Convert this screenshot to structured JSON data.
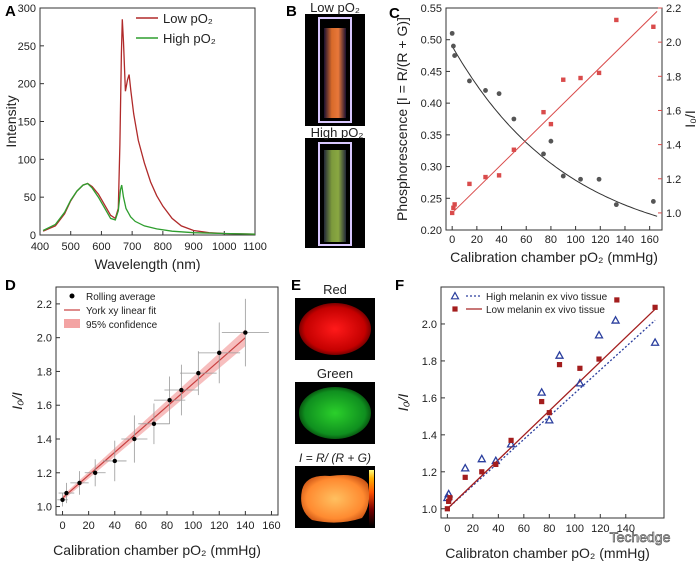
{
  "panels": {
    "A": "A",
    "B": "B",
    "C": "C",
    "D": "D",
    "E": "E",
    "F": "F"
  },
  "chart_data": [
    {
      "id": "A",
      "type": "line",
      "xlabel": "Wavelength (nm)",
      "ylabel": "Intensity",
      "xlim": [
        400,
        1100
      ],
      "ylim": [
        0,
        300
      ],
      "xticks": [
        400,
        500,
        600,
        700,
        800,
        900,
        1000,
        1100
      ],
      "yticks": [
        0,
        50,
        100,
        150,
        200,
        250,
        300
      ],
      "legend": "top-right",
      "series": [
        {
          "name": "Low pO₂",
          "color": "#b02a2a",
          "points": [
            [
              410,
              5
            ],
            [
              450,
              12
            ],
            [
              480,
              28
            ],
            [
              500,
              45
            ],
            [
              520,
              58
            ],
            [
              540,
              66
            ],
            [
              555,
              68
            ],
            [
              570,
              64
            ],
            [
              590,
              54
            ],
            [
              610,
              40
            ],
            [
              630,
              26
            ],
            [
              645,
              22
            ],
            [
              655,
              35
            ],
            [
              660,
              120
            ],
            [
              665,
              240
            ],
            [
              668,
              285
            ],
            [
              672,
              255
            ],
            [
              678,
              190
            ],
            [
              685,
              205
            ],
            [
              690,
              212
            ],
            [
              696,
              190
            ],
            [
              705,
              160
            ],
            [
              720,
              125
            ],
            [
              740,
              95
            ],
            [
              760,
              70
            ],
            [
              780,
              52
            ],
            [
              800,
              38
            ],
            [
              830,
              22
            ],
            [
              860,
              12
            ],
            [
              900,
              6
            ],
            [
              950,
              3
            ],
            [
              1000,
              2
            ],
            [
              1100,
              1
            ]
          ]
        },
        {
          "name": "High pO₂",
          "color": "#2e9e2e",
          "points": [
            [
              410,
              6
            ],
            [
              450,
              14
            ],
            [
              480,
              30
            ],
            [
              500,
              46
            ],
            [
              520,
              58
            ],
            [
              540,
              66
            ],
            [
              555,
              68
            ],
            [
              570,
              62
            ],
            [
              590,
              50
            ],
            [
              610,
              36
            ],
            [
              630,
              22
            ],
            [
              645,
              20
            ],
            [
              655,
              32
            ],
            [
              662,
              60
            ],
            [
              666,
              66
            ],
            [
              672,
              50
            ],
            [
              680,
              35
            ],
            [
              695,
              24
            ],
            [
              710,
              18
            ],
            [
              740,
              12
            ],
            [
              780,
              8
            ],
            [
              830,
              5
            ],
            [
              900,
              3
            ],
            [
              1000,
              2
            ],
            [
              1100,
              1
            ]
          ]
        }
      ]
    },
    {
      "id": "C",
      "type": "scatter",
      "xlabel": "Calibration chamber pO₂ (mmHg)",
      "ylabel_left": "Phosphorescence [I = R/(R + G)]",
      "ylabel_right": "I₀/I",
      "xlim": [
        -5,
        170
      ],
      "ylim_left": [
        0.2,
        0.55
      ],
      "ylim_right": [
        0.9,
        2.2
      ],
      "xticks": [
        0,
        20,
        40,
        60,
        80,
        100,
        120,
        140,
        160
      ],
      "yticks_left": [
        0.2,
        0.25,
        0.3,
        0.35,
        0.4,
        0.45,
        0.5,
        0.55
      ],
      "yticks_right": [
        1.0,
        1.2,
        1.4,
        1.6,
        1.8,
        2.0,
        2.2
      ],
      "series": [
        {
          "name": "Phosphorescence",
          "color": "#555555",
          "x": [
            0,
            1,
            2,
            14,
            27,
            38,
            50,
            74,
            80,
            90,
            104,
            119,
            133,
            163
          ],
          "y": [
            0.51,
            0.49,
            0.475,
            0.435,
            0.42,
            0.415,
            0.375,
            0.32,
            0.34,
            0.285,
            0.28,
            0.28,
            0.24,
            0.245
          ]
        },
        {
          "name": "I₀/I",
          "color": "#d94b4b",
          "x": [
            0,
            1,
            2,
            14,
            27,
            38,
            50,
            74,
            80,
            90,
            104,
            119,
            133,
            163
          ],
          "y": [
            1.0,
            1.03,
            1.05,
            1.17,
            1.21,
            1.22,
            1.37,
            1.59,
            1.52,
            1.78,
            1.79,
            1.82,
            2.13,
            2.09
          ]
        }
      ]
    },
    {
      "id": "D",
      "type": "scatter",
      "xlabel": "Calibration chamber pO₂ (mmHg)",
      "ylabel": "I₀/I",
      "xlim": [
        -5,
        165
      ],
      "ylim": [
        0.95,
        2.3
      ],
      "xticks": [
        0,
        20,
        40,
        60,
        80,
        100,
        120,
        140,
        160
      ],
      "yticks": [
        1.0,
        1.2,
        1.4,
        1.6,
        1.8,
        2.0,
        2.2
      ],
      "legend": "top-left",
      "legend_entries": [
        "Rolling average",
        "York xy linear fit",
        "95% confidence"
      ],
      "fit": {
        "x": [
          0,
          140
        ],
        "y": [
          1.05,
          2.0
        ]
      },
      "points": [
        {
          "x": 0,
          "y": 1.04,
          "xerr": 4,
          "yerr": 0.04
        },
        {
          "x": 3,
          "y": 1.08,
          "xerr": 6,
          "yerr": 0.06
        },
        {
          "x": 13,
          "y": 1.14,
          "xerr": 7,
          "yerr": 0.07
        },
        {
          "x": 25,
          "y": 1.2,
          "xerr": 8,
          "yerr": 0.08
        },
        {
          "x": 40,
          "y": 1.27,
          "xerr": 9,
          "yerr": 0.12
        },
        {
          "x": 55,
          "y": 1.4,
          "xerr": 10,
          "yerr": 0.14
        },
        {
          "x": 70,
          "y": 1.49,
          "xerr": 12,
          "yerr": 0.12
        },
        {
          "x": 82,
          "y": 1.63,
          "xerr": 12,
          "yerr": 0.14
        },
        {
          "x": 91,
          "y": 1.69,
          "xerr": 13,
          "yerr": 0.15
        },
        {
          "x": 104,
          "y": 1.79,
          "xerr": 14,
          "yerr": 0.13
        },
        {
          "x": 120,
          "y": 1.91,
          "xerr": 16,
          "yerr": 0.18
        },
        {
          "x": 140,
          "y": 2.03,
          "xerr": 18,
          "yerr": 0.2
        }
      ]
    },
    {
      "id": "F",
      "type": "scatter",
      "xlabel": "Calibraton chamber pO₂ (mmHg)",
      "ylabel": "I₀/I",
      "xlim": [
        -5,
        170
      ],
      "ylim": [
        0.95,
        2.2
      ],
      "xticks": [
        0,
        20,
        40,
        60,
        80,
        100,
        120,
        140
      ],
      "yticks": [
        1.0,
        1.2,
        1.4,
        1.6,
        1.8,
        2.0
      ],
      "legend": "top",
      "series": [
        {
          "name": "High melanin ex vivo tissue",
          "marker": "triangle",
          "color": "#2b3f9e",
          "x": [
            0,
            1,
            14,
            27,
            38,
            50,
            74,
            80,
            88,
            104,
            119,
            132,
            163
          ],
          "y": [
            1.06,
            1.08,
            1.22,
            1.27,
            1.26,
            1.35,
            1.63,
            1.48,
            1.83,
            1.68,
            1.94,
            2.02,
            1.9
          ],
          "fit": {
            "x": [
              0,
              163
            ],
            "y": [
              1.0,
              2.02
            ],
            "style": "dotted"
          }
        },
        {
          "name": "Low melanin ex vivo tissue",
          "marker": "square",
          "color": "#a31d1d",
          "x": [
            0,
            1,
            2,
            14,
            27,
            38,
            50,
            74,
            80,
            88,
            104,
            119,
            133,
            163
          ],
          "y": [
            1.0,
            1.04,
            1.06,
            1.17,
            1.2,
            1.24,
            1.37,
            1.58,
            1.52,
            1.78,
            1.76,
            1.81,
            2.13,
            2.09
          ],
          "fit": {
            "x": [
              0,
              163
            ],
            "y": [
              1.0,
              2.08
            ],
            "style": "solid"
          }
        }
      ]
    }
  ],
  "panelB": {
    "top_label": "Low pO₂",
    "bottom_label": "High pO₂"
  },
  "panelE": {
    "red_label": "Red",
    "green_label": "Green",
    "ratio_label": "I = R/ (R + G)"
  },
  "watermark": "Techedge"
}
